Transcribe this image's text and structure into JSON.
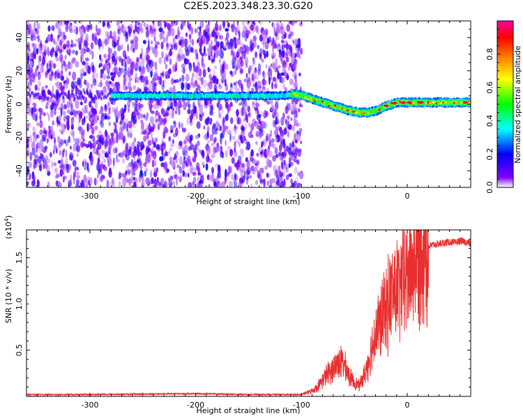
{
  "title": "C2E5.2023.348.23.30.G20",
  "chart_data": [
    {
      "type": "heatmap",
      "title": "C2E5.2023.348.23.30.G20",
      "xlabel": "Height of straight line (km)",
      "ylabel": "Frequency (Hz)",
      "xlim": [
        -360,
        60
      ],
      "ylim": [
        -50,
        50
      ],
      "xticks": [
        -300,
        -200,
        -100,
        0
      ],
      "yticks": [
        -40,
        -20,
        0,
        20,
        40
      ],
      "colorbar": {
        "label": "Normalized spectral amplitude",
        "range": [
          0,
          1
        ],
        "ticks": [
          0.0,
          0.2,
          0.4,
          0.6,
          0.8
        ],
        "colormap": [
          "#ffffff",
          "#8000ff",
          "#0000ff",
          "#00ffff",
          "#00ff00",
          "#ffff00",
          "#ff8000",
          "#ff0000",
          "#ff00a0"
        ]
      },
      "noise_region_x": [
        -360,
        -100
      ],
      "ridge": {
        "description": "frequency of strongest spectral component vs height",
        "x": [
          -280,
          -240,
          -200,
          -160,
          -120,
          -105,
          -95,
          -85,
          -75,
          -65,
          -55,
          -45,
          -38,
          -30,
          -20,
          -10,
          0,
          10,
          20,
          40,
          58
        ],
        "y": [
          5,
          5,
          5,
          5,
          5,
          6,
          4,
          2,
          0,
          -2,
          -4,
          -5,
          -5,
          -4,
          -1,
          1,
          1,
          1,
          1,
          1,
          1
        ]
      },
      "grid": false
    },
    {
      "type": "line",
      "xlabel": "Height of straight line (km)",
      "ylabel": "SNR (10 * v/v)",
      "yscale_label": "(x10",
      "yscale_exp": "4",
      "yscale_suffix": ")",
      "xlim": [
        -360,
        60
      ],
      "ylim": [
        0,
        1.8
      ],
      "xticks": [
        -300,
        -200,
        -100,
        0
      ],
      "yticks": [
        0.5,
        1.0,
        1.5
      ],
      "ytick_labels": [
        "0.5",
        "1.0",
        "1.5"
      ],
      "series": [
        {
          "color": "#e83030",
          "x": [
            -360,
            -300,
            -250,
            -200,
            -150,
            -100,
            -95,
            -90,
            -85,
            -80,
            -75,
            -70,
            -65,
            -60,
            -55,
            -50,
            -45,
            -40,
            -35,
            -30,
            -25,
            -20,
            -15,
            -10,
            -5,
            0,
            5,
            10,
            15,
            20,
            25,
            30,
            35,
            40,
            45,
            50,
            55,
            60
          ],
          "y": [
            0.02,
            0.02,
            0.025,
            0.03,
            0.02,
            0.02,
            0.04,
            0.06,
            0.1,
            0.18,
            0.25,
            0.3,
            0.38,
            0.35,
            0.22,
            0.15,
            0.12,
            0.25,
            0.45,
            0.7,
            0.8,
            0.95,
            1.1,
            1.15,
            1.2,
            1.3,
            1.45,
            1.55,
            1.6,
            1.62,
            1.64,
            1.65,
            1.66,
            1.67,
            1.66,
            1.68,
            1.67,
            1.65
          ]
        }
      ],
      "grid": false
    }
  ]
}
